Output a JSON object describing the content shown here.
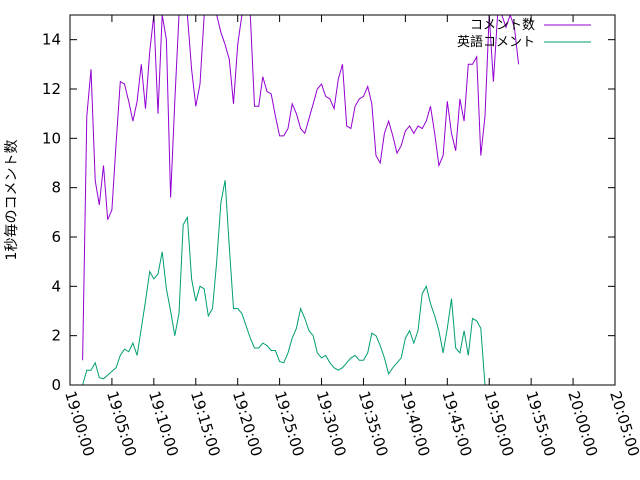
{
  "chart_data": {
    "type": "line",
    "ylabel": "1秒毎のコメント数",
    "xlabel": "",
    "ylim": [
      0,
      15
    ],
    "yticks": [
      "0",
      "2",
      "4",
      "6",
      "8",
      "10",
      "12",
      "14"
    ],
    "xlim": [
      "19:00:00",
      "20:05:00"
    ],
    "xticks": [
      "19:00:00",
      "19:05:00",
      "19:10:00",
      "19:15:00",
      "19:20:00",
      "19:25:00",
      "19:30:00",
      "19:35:00",
      "19:40:00",
      "19:45:00",
      "19:50:00",
      "19:55:00",
      "20:00:00",
      "20:05:00"
    ],
    "grid": false,
    "legend_position": "top-right",
    "colors": {
      "series1": "#9400d3",
      "series2": "#009e73"
    },
    "series": [
      {
        "name": "コメント数",
        "points": [
          [
            "19:01:30",
            1.0
          ],
          [
            "19:02:00",
            10.9
          ],
          [
            "19:02:30",
            12.8
          ],
          [
            "19:03:00",
            8.3
          ],
          [
            "19:03:30",
            7.3
          ],
          [
            "19:04:00",
            8.9
          ],
          [
            "19:04:30",
            6.7
          ],
          [
            "19:05:00",
            7.1
          ],
          [
            "19:05:30",
            9.8
          ],
          [
            "19:06:00",
            12.3
          ],
          [
            "19:06:30",
            12.2
          ],
          [
            "19:07:00",
            11.5
          ],
          [
            "19:07:30",
            10.7
          ],
          [
            "19:08:00",
            11.5
          ],
          [
            "19:08:30",
            13.0
          ],
          [
            "19:09:00",
            11.2
          ],
          [
            "19:09:30",
            13.5
          ],
          [
            "19:10:00",
            15.0
          ],
          [
            "19:10:30",
            11.0
          ],
          [
            "19:11:00",
            15.0
          ],
          [
            "19:11:30",
            14.0
          ],
          [
            "19:12:00",
            7.6
          ],
          [
            "19:12:30",
            11.5
          ],
          [
            "19:13:00",
            15.0
          ],
          [
            "19:13:30",
            15.0
          ],
          [
            "19:14:00",
            15.0
          ],
          [
            "19:14:30",
            12.8
          ],
          [
            "19:15:00",
            11.3
          ],
          [
            "19:15:30",
            12.2
          ],
          [
            "19:16:00",
            15.0
          ],
          [
            "19:16:30",
            15.0
          ],
          [
            "19:17:00",
            15.0
          ],
          [
            "19:17:30",
            15.0
          ],
          [
            "19:18:00",
            14.3
          ],
          [
            "19:18:30",
            13.8
          ],
          [
            "19:19:00",
            13.2
          ],
          [
            "19:19:30",
            11.4
          ],
          [
            "19:20:00",
            13.8
          ],
          [
            "19:20:30",
            15.0
          ],
          [
            "19:21:00",
            15.0
          ],
          [
            "19:21:30",
            15.0
          ],
          [
            "19:22:00",
            11.3
          ],
          [
            "19:22:30",
            11.3
          ],
          [
            "19:23:00",
            12.5
          ],
          [
            "19:23:30",
            11.9
          ],
          [
            "19:24:00",
            11.8
          ],
          [
            "19:24:30",
            10.9
          ],
          [
            "19:25:00",
            10.1
          ],
          [
            "19:25:30",
            10.1
          ],
          [
            "19:26:00",
            10.4
          ],
          [
            "19:26:30",
            11.4
          ],
          [
            "19:27:00",
            11.0
          ],
          [
            "19:27:30",
            10.4
          ],
          [
            "19:28:00",
            10.2
          ],
          [
            "19:28:30",
            10.8
          ],
          [
            "19:29:00",
            11.4
          ],
          [
            "19:29:30",
            12.0
          ],
          [
            "19:30:00",
            12.2
          ],
          [
            "19:30:30",
            11.7
          ],
          [
            "19:31:00",
            11.6
          ],
          [
            "19:31:30",
            11.2
          ],
          [
            "19:32:00",
            12.4
          ],
          [
            "19:32:30",
            13.0
          ],
          [
            "19:33:00",
            10.5
          ],
          [
            "19:33:30",
            10.4
          ],
          [
            "19:34:00",
            11.3
          ],
          [
            "19:34:30",
            11.6
          ],
          [
            "19:35:00",
            11.7
          ],
          [
            "19:35:30",
            12.1
          ],
          [
            "19:36:00",
            11.4
          ],
          [
            "19:36:30",
            9.3
          ],
          [
            "19:37:00",
            9.0
          ],
          [
            "19:37:30",
            10.2
          ],
          [
            "19:38:00",
            10.7
          ],
          [
            "19:38:30",
            10.1
          ],
          [
            "19:39:00",
            9.4
          ],
          [
            "19:39:30",
            9.7
          ],
          [
            "19:40:00",
            10.3
          ],
          [
            "19:40:30",
            10.5
          ],
          [
            "19:41:00",
            10.2
          ],
          [
            "19:41:30",
            10.5
          ],
          [
            "19:42:00",
            10.4
          ],
          [
            "19:42:30",
            10.7
          ],
          [
            "19:43:00",
            11.3
          ],
          [
            "19:43:30",
            10.2
          ],
          [
            "19:44:00",
            8.9
          ],
          [
            "19:44:30",
            9.3
          ],
          [
            "19:45:00",
            11.5
          ],
          [
            "19:45:30",
            10.2
          ],
          [
            "19:46:00",
            9.5
          ],
          [
            "19:46:30",
            11.6
          ],
          [
            "19:47:00",
            10.7
          ],
          [
            "19:47:30",
            13.0
          ],
          [
            "19:48:00",
            13.0
          ],
          [
            "19:48:30",
            13.3
          ],
          [
            "19:49:00",
            9.3
          ],
          [
            "19:49:30",
            10.9
          ],
          [
            "19:50:00",
            15.0
          ],
          [
            "19:50:30",
            12.3
          ],
          [
            "19:51:00",
            15.0
          ],
          [
            "19:51:30",
            15.0
          ],
          [
            "19:52:00",
            14.5
          ],
          [
            "19:52:30",
            15.0
          ],
          [
            "19:53:00",
            14.5
          ],
          [
            "19:53:30",
            13.0
          ]
        ]
      },
      {
        "name": "英語コメント",
        "points": [
          [
            "19:01:30",
            0.0
          ],
          [
            "19:02:00",
            0.6
          ],
          [
            "19:02:30",
            0.6
          ],
          [
            "19:03:00",
            0.9
          ],
          [
            "19:03:30",
            0.3
          ],
          [
            "19:04:00",
            0.25
          ],
          [
            "19:04:30",
            0.4
          ],
          [
            "19:05:00",
            0.55
          ],
          [
            "19:05:30",
            0.7
          ],
          [
            "19:06:00",
            1.2
          ],
          [
            "19:06:30",
            1.45
          ],
          [
            "19:07:00",
            1.35
          ],
          [
            "19:07:30",
            1.7
          ],
          [
            "19:08:00",
            1.2
          ],
          [
            "19:08:30",
            2.3
          ],
          [
            "19:09:00",
            3.4
          ],
          [
            "19:09:30",
            4.6
          ],
          [
            "19:10:00",
            4.3
          ],
          [
            "19:10:30",
            4.5
          ],
          [
            "19:11:00",
            5.4
          ],
          [
            "19:11:30",
            3.9
          ],
          [
            "19:12:00",
            3.0
          ],
          [
            "19:12:30",
            2.0
          ],
          [
            "19:13:00",
            2.9
          ],
          [
            "19:13:30",
            6.5
          ],
          [
            "19:14:00",
            6.8
          ],
          [
            "19:14:30",
            4.3
          ],
          [
            "19:15:00",
            3.4
          ],
          [
            "19:15:30",
            4.0
          ],
          [
            "19:16:00",
            3.9
          ],
          [
            "19:16:30",
            2.8
          ],
          [
            "19:17:00",
            3.1
          ],
          [
            "19:17:30",
            5.0
          ],
          [
            "19:18:00",
            7.4
          ],
          [
            "19:18:30",
            8.3
          ],
          [
            "19:19:00",
            5.6
          ],
          [
            "19:19:30",
            3.1
          ],
          [
            "19:20:00",
            3.1
          ],
          [
            "19:20:30",
            2.9
          ],
          [
            "19:21:00",
            2.4
          ],
          [
            "19:21:30",
            1.9
          ],
          [
            "19:22:00",
            1.5
          ],
          [
            "19:22:30",
            1.5
          ],
          [
            "19:23:00",
            1.7
          ],
          [
            "19:23:30",
            1.6
          ],
          [
            "19:24:00",
            1.4
          ],
          [
            "19:24:30",
            1.4
          ],
          [
            "19:25:00",
            0.95
          ],
          [
            "19:25:30",
            0.9
          ],
          [
            "19:26:00",
            1.3
          ],
          [
            "19:26:30",
            1.9
          ],
          [
            "19:27:00",
            2.3
          ],
          [
            "19:27:30",
            3.1
          ],
          [
            "19:28:00",
            2.7
          ],
          [
            "19:28:30",
            2.2
          ],
          [
            "19:29:00",
            2.0
          ],
          [
            "19:29:30",
            1.3
          ],
          [
            "19:30:00",
            1.1
          ],
          [
            "19:30:30",
            1.2
          ],
          [
            "19:31:00",
            0.9
          ],
          [
            "19:31:30",
            0.7
          ],
          [
            "19:32:00",
            0.6
          ],
          [
            "19:32:30",
            0.7
          ],
          [
            "19:33:00",
            0.9
          ],
          [
            "19:33:30",
            1.1
          ],
          [
            "19:34:00",
            1.2
          ],
          [
            "19:34:30",
            1.0
          ],
          [
            "19:35:00",
            1.0
          ],
          [
            "19:35:30",
            1.3
          ],
          [
            "19:36:00",
            2.1
          ],
          [
            "19:36:30",
            2.0
          ],
          [
            "19:37:00",
            1.6
          ],
          [
            "19:37:30",
            1.1
          ],
          [
            "19:38:00",
            0.45
          ],
          [
            "19:38:30",
            0.7
          ],
          [
            "19:39:00",
            0.9
          ],
          [
            "19:39:30",
            1.1
          ],
          [
            "19:40:00",
            1.9
          ],
          [
            "19:40:30",
            2.2
          ],
          [
            "19:41:00",
            1.7
          ],
          [
            "19:41:30",
            2.2
          ],
          [
            "19:42:00",
            3.7
          ],
          [
            "19:42:30",
            4.0
          ],
          [
            "19:43:00",
            3.3
          ],
          [
            "19:43:30",
            2.8
          ],
          [
            "19:44:00",
            2.2
          ],
          [
            "19:44:30",
            1.3
          ],
          [
            "19:45:00",
            2.3
          ],
          [
            "19:45:30",
            3.5
          ],
          [
            "19:46:00",
            1.5
          ],
          [
            "19:46:30",
            1.3
          ],
          [
            "19:47:00",
            2.2
          ],
          [
            "19:47:30",
            1.2
          ],
          [
            "19:48:00",
            2.7
          ],
          [
            "19:48:30",
            2.6
          ],
          [
            "19:49:00",
            2.3
          ],
          [
            "19:49:30",
            0.0
          ]
        ]
      }
    ]
  }
}
